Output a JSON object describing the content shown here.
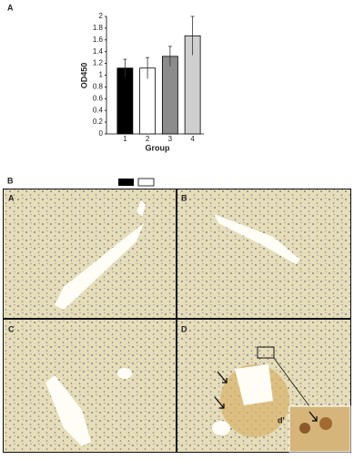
{
  "chart_data": {
    "type": "bar",
    "panel_label": "A",
    "ylabel": "OD450",
    "xlabel": "Group",
    "categories": [
      "1",
      "2",
      "3",
      "4"
    ],
    "values": [
      1.12,
      1.12,
      1.32,
      1.67
    ],
    "errors": [
      0.15,
      0.18,
      0.17,
      0.33
    ],
    "colors": [
      "#000000",
      "#ffffff",
      "#8c8c8c",
      "#cfcfcf"
    ],
    "ylim": [
      0,
      2
    ],
    "yticks": [
      0,
      0.2,
      0.4,
      0.6,
      0.8,
      1,
      1.2,
      1.4,
      1.6,
      1.8,
      2
    ]
  },
  "panel_b": {
    "label": "B",
    "panels": [
      "A",
      "B",
      "C",
      "D"
    ],
    "inset_label": "d'"
  }
}
